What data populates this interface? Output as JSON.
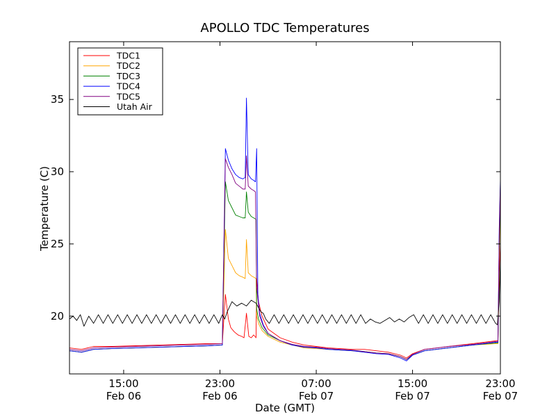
{
  "chart_data": {
    "type": "line",
    "title": "APOLLO TDC Temperatures",
    "xlabel": "Date (GMT)",
    "ylabel": "Temperature (C)",
    "xlim": [
      10.5,
      46.3
    ],
    "ylim": [
      16,
      39
    ],
    "grid": false,
    "legend_position": "top-left",
    "x_ticks": [
      {
        "x": 15,
        "time": "15:00",
        "date": "Feb 06"
      },
      {
        "x": 23,
        "time": "23:00",
        "date": "Feb 06"
      },
      {
        "x": 31,
        "time": "07:00",
        "date": "Feb 07"
      },
      {
        "x": 39,
        "time": "15:00",
        "date": "Feb 07"
      },
      {
        "x": 47,
        "time": "23:00",
        "date": "Feb 07"
      }
    ],
    "y_ticks": [
      20,
      25,
      30,
      35
    ],
    "series": [
      {
        "name": "TDC1",
        "color": "#ff0000",
        "x": [
          10.5,
          11.5,
          12.5,
          14,
          16,
          18,
          20,
          22,
          23.2,
          23.45,
          23.7,
          23.9,
          24.2,
          24.5,
          24.8,
          25.0,
          25.2,
          25.4,
          25.6,
          25.8,
          26.0,
          26.05,
          26.2,
          26.5,
          27,
          28,
          29,
          30,
          31,
          32,
          33,
          34,
          35,
          36,
          37,
          38,
          38.5,
          39,
          40,
          42,
          44,
          46,
          46.1,
          46.2,
          46.3
        ],
        "values": [
          17.8,
          17.7,
          17.9,
          17.9,
          17.95,
          18.0,
          18.05,
          18.1,
          18.1,
          21.5,
          19.8,
          19.2,
          18.9,
          18.7,
          18.6,
          18.5,
          20.2,
          18.6,
          18.5,
          18.7,
          18.5,
          22.6,
          21.0,
          20.0,
          19.1,
          18.5,
          18.2,
          18.0,
          17.9,
          17.8,
          17.75,
          17.7,
          17.7,
          17.6,
          17.5,
          17.3,
          17.1,
          17.4,
          17.7,
          17.9,
          18.1,
          18.3,
          18.3,
          23.0,
          25.0
        ]
      },
      {
        "name": "TDC2",
        "color": "#ffa500",
        "x": [
          10.5,
          11.5,
          12.5,
          14,
          16,
          18,
          20,
          22,
          23.2,
          23.45,
          23.7,
          24.0,
          24.3,
          24.6,
          24.9,
          25.1,
          25.2,
          25.35,
          25.6,
          25.8,
          26.0,
          26.05,
          26.2,
          26.5,
          27,
          28,
          29,
          30,
          31,
          32,
          33,
          34,
          35,
          36,
          37,
          38,
          38.5,
          39,
          40,
          42,
          44,
          46,
          46.1,
          46.2,
          46.3
        ],
        "values": [
          17.6,
          17.5,
          17.7,
          17.75,
          17.8,
          17.85,
          17.9,
          17.95,
          18.0,
          26.0,
          24.0,
          23.5,
          23.0,
          22.8,
          22.7,
          22.6,
          25.3,
          23.0,
          22.8,
          22.7,
          22.6,
          20.0,
          19.5,
          19.0,
          18.6,
          18.2,
          18.0,
          17.8,
          17.75,
          17.7,
          17.65,
          17.6,
          17.55,
          17.45,
          17.4,
          17.2,
          17.0,
          17.3,
          17.6,
          17.8,
          18.0,
          18.1,
          18.1,
          24.0,
          28.0
        ]
      },
      {
        "name": "TDC3",
        "color": "#008000",
        "x": [
          10.5,
          11.5,
          12.5,
          14,
          16,
          18,
          20,
          22,
          23.2,
          23.45,
          23.7,
          24.0,
          24.3,
          24.6,
          24.9,
          25.1,
          25.2,
          25.35,
          25.6,
          25.8,
          26.0,
          26.05,
          26.2,
          26.5,
          27,
          28,
          29,
          30,
          31,
          32,
          33,
          34,
          35,
          36,
          37,
          38,
          38.5,
          39,
          40,
          42,
          44,
          46,
          46.1,
          46.2,
          46.3
        ],
        "values": [
          17.6,
          17.5,
          17.7,
          17.75,
          17.8,
          17.85,
          17.9,
          17.95,
          18.0,
          29.3,
          28.0,
          27.5,
          27.0,
          26.9,
          26.8,
          26.8,
          28.6,
          27.2,
          26.9,
          26.8,
          26.7,
          20.5,
          19.8,
          19.2,
          18.7,
          18.3,
          18.0,
          17.85,
          17.8,
          17.7,
          17.65,
          17.6,
          17.55,
          17.45,
          17.4,
          17.2,
          17.0,
          17.3,
          17.6,
          17.8,
          18.0,
          18.15,
          18.15,
          25.0,
          29.0
        ]
      },
      {
        "name": "TDC4",
        "color": "#0000ff",
        "x": [
          10.5,
          11.5,
          12.5,
          14,
          16,
          18,
          20,
          22,
          23.2,
          23.45,
          23.7,
          24.0,
          24.3,
          24.6,
          24.9,
          25.1,
          25.2,
          25.35,
          25.6,
          25.8,
          25.95,
          26.05,
          26.15,
          26.3,
          26.6,
          27,
          28,
          29,
          30,
          31,
          32,
          33,
          34,
          35,
          36,
          37,
          38,
          38.5,
          39,
          40,
          42,
          44,
          46,
          46.1,
          46.2,
          46.3
        ],
        "values": [
          17.6,
          17.5,
          17.7,
          17.75,
          17.8,
          17.85,
          17.9,
          17.95,
          18.0,
          31.6,
          30.8,
          30.2,
          29.8,
          29.6,
          29.5,
          29.6,
          35.1,
          29.8,
          29.5,
          29.4,
          29.3,
          31.6,
          21.5,
          20.2,
          19.4,
          18.8,
          18.3,
          18.0,
          17.85,
          17.8,
          17.7,
          17.65,
          17.6,
          17.5,
          17.4,
          17.35,
          17.1,
          16.9,
          17.3,
          17.6,
          17.8,
          18.0,
          18.2,
          18.2,
          26.0,
          29.5
        ]
      },
      {
        "name": "TDC5",
        "color": "#800080",
        "x": [
          10.5,
          11.5,
          12.5,
          14,
          16,
          18,
          20,
          22,
          23.2,
          23.45,
          23.7,
          24.0,
          24.3,
          24.6,
          24.9,
          25.1,
          25.2,
          25.35,
          25.6,
          25.8,
          25.95,
          26.05,
          26.15,
          26.3,
          26.6,
          27,
          28,
          29,
          30,
          31,
          32,
          33,
          34,
          35,
          36,
          37,
          38,
          38.5,
          39,
          40,
          42,
          44,
          46,
          46.1,
          46.2,
          46.3
        ],
        "values": [
          17.7,
          17.6,
          17.8,
          17.85,
          17.9,
          17.95,
          18.0,
          18.05,
          18.1,
          30.9,
          30.3,
          29.8,
          29.2,
          29.0,
          28.8,
          28.8,
          31.1,
          29.0,
          28.8,
          28.7,
          28.6,
          22.0,
          21.2,
          20.0,
          19.3,
          18.8,
          18.3,
          18.05,
          17.9,
          17.85,
          17.75,
          17.7,
          17.65,
          17.55,
          17.45,
          17.4,
          17.2,
          17.0,
          17.35,
          17.7,
          17.9,
          18.05,
          18.25,
          18.25,
          25.5,
          29.2
        ]
      },
      {
        "name": "Utah Air",
        "color": "#000000",
        "x": [
          10.5,
          10.8,
          11.1,
          11.4,
          11.7,
          12.1,
          12.5,
          12.9,
          13.3,
          13.7,
          14.1,
          14.5,
          14.9,
          15.3,
          15.7,
          16.1,
          16.5,
          16.9,
          17.3,
          17.7,
          18.1,
          18.5,
          18.9,
          19.3,
          19.7,
          20.1,
          20.5,
          20.9,
          21.3,
          21.7,
          22.1,
          22.5,
          22.9,
          23.2,
          23.4,
          23.6,
          24.0,
          24.4,
          24.8,
          25.2,
          25.6,
          26.0,
          26.4,
          26.6,
          26.8,
          27.1,
          27.5,
          27.9,
          28.3,
          28.7,
          29.1,
          29.5,
          29.9,
          30.3,
          30.7,
          31.1,
          31.5,
          31.9,
          32.3,
          32.7,
          33.1,
          33.5,
          33.9,
          34.3,
          34.7,
          35.1,
          35.5,
          35.9,
          36.3,
          36.7,
          37.1,
          37.5,
          37.9,
          38.3,
          38.7,
          39.1,
          39.5,
          39.9,
          40.3,
          40.7,
          41.1,
          41.5,
          41.9,
          42.3,
          42.7,
          43.1,
          43.5,
          43.9,
          44.3,
          44.7,
          45.1,
          45.5,
          45.9,
          46.05,
          46.2,
          46.3
        ],
        "values": [
          19.8,
          20.0,
          19.7,
          20.1,
          19.3,
          20.0,
          19.5,
          20.1,
          19.5,
          20.1,
          19.5,
          20.1,
          19.5,
          20.1,
          19.5,
          20.1,
          19.5,
          20.1,
          19.5,
          20.1,
          19.5,
          20.1,
          19.5,
          20.1,
          19.5,
          20.1,
          19.5,
          20.1,
          19.5,
          20.1,
          19.5,
          20.1,
          19.5,
          20.1,
          19.8,
          20.3,
          21.0,
          20.7,
          20.9,
          20.7,
          21.1,
          20.9,
          20.3,
          20.2,
          19.8,
          19.5,
          20.1,
          19.5,
          20.1,
          19.5,
          20.1,
          19.5,
          20.1,
          19.5,
          20.1,
          19.5,
          20.1,
          19.5,
          20.1,
          19.5,
          20.1,
          19.5,
          20.1,
          19.5,
          20.1,
          19.5,
          19.8,
          19.6,
          19.5,
          19.7,
          19.9,
          19.6,
          19.8,
          19.6,
          19.9,
          20.1,
          19.5,
          20.1,
          19.5,
          20.1,
          19.5,
          20.1,
          19.5,
          20.1,
          19.5,
          20.1,
          19.5,
          20.1,
          19.5,
          20.1,
          19.5,
          20.1,
          19.5,
          19.4,
          21.0,
          24.0
        ]
      }
    ]
  }
}
